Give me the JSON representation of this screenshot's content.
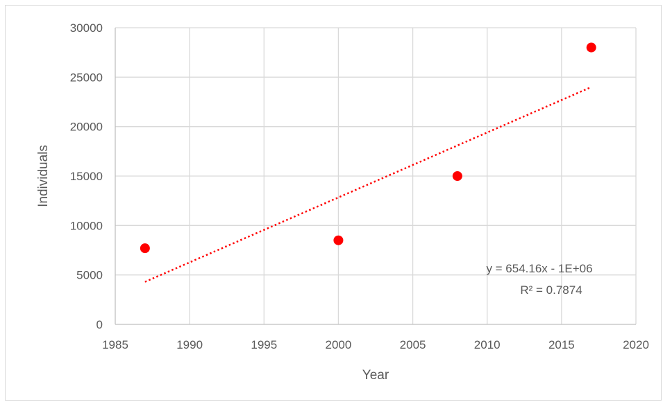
{
  "chart_data": {
    "type": "scatter",
    "title": "",
    "xlabel": "Year",
    "ylabel": "Individuals",
    "xlim": [
      1985,
      2020
    ],
    "ylim": [
      0,
      30000
    ],
    "xticks": [
      1985,
      1990,
      1995,
      2000,
      2005,
      2010,
      2015,
      2020
    ],
    "yticks": [
      0,
      5000,
      10000,
      15000,
      20000,
      25000,
      30000
    ],
    "grid": true,
    "legend": "none",
    "series": [
      {
        "x": [
          1987,
          2000,
          2008,
          2017
        ],
        "y": [
          7700,
          8500,
          15000,
          28000
        ],
        "color": "#ff0000"
      }
    ],
    "trendline": {
      "type": "linear",
      "color": "#ff0000",
      "style": "dotted",
      "x_range": [
        1987,
        2017
      ],
      "y_range": [
        4300,
        24000
      ],
      "equation": "y = 654.16x - 1E+06",
      "r_squared": "R² = 0.7874"
    }
  }
}
